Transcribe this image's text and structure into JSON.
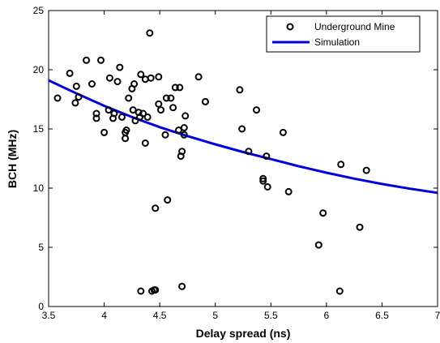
{
  "chart_data": {
    "type": "scatter",
    "title": "",
    "xlabel": "Delay spread (ns)",
    "ylabel": "BCH (MHz)",
    "xlim": [
      3.5,
      7
    ],
    "ylim": [
      0,
      25
    ],
    "xticks": [
      "3.5",
      "4",
      "4.5",
      "5",
      "5.5",
      "6",
      "6.5",
      "7"
    ],
    "yticks": [
      "0",
      "5",
      "10",
      "15",
      "20",
      "25"
    ],
    "grid": false,
    "legend_position": "top-right",
    "series": [
      {
        "name": "Underground Mine",
        "kind": "scatter",
        "marker": "circle",
        "color": "#000000",
        "points": [
          [
            3.58,
            17.6
          ],
          [
            3.69,
            19.7
          ],
          [
            3.74,
            17.2
          ],
          [
            3.75,
            18.6
          ],
          [
            3.77,
            17.7
          ],
          [
            3.84,
            20.8
          ],
          [
            3.89,
            18.8
          ],
          [
            3.93,
            16.3
          ],
          [
            3.93,
            15.9
          ],
          [
            3.97,
            20.8
          ],
          [
            4.0,
            14.7
          ],
          [
            4.04,
            16.6
          ],
          [
            4.05,
            19.3
          ],
          [
            4.08,
            15.9
          ],
          [
            4.09,
            16.3
          ],
          [
            4.12,
            19.0
          ],
          [
            4.14,
            20.2
          ],
          [
            4.16,
            16.0
          ],
          [
            4.19,
            14.2
          ],
          [
            4.19,
            14.7
          ],
          [
            4.2,
            14.9
          ],
          [
            4.22,
            17.6
          ],
          [
            4.25,
            18.4
          ],
          [
            4.26,
            16.6
          ],
          [
            4.27,
            18.8
          ],
          [
            4.28,
            15.7
          ],
          [
            4.31,
            16.4
          ],
          [
            4.32,
            16.0
          ],
          [
            4.33,
            19.6
          ],
          [
            4.35,
            16.3
          ],
          [
            4.37,
            19.2
          ],
          [
            4.37,
            13.8
          ],
          [
            4.39,
            16.0
          ],
          [
            4.41,
            23.1
          ],
          [
            4.42,
            19.3
          ],
          [
            4.33,
            1.3
          ],
          [
            4.43,
            1.3
          ],
          [
            4.45,
            1.4
          ],
          [
            4.46,
            1.4
          ],
          [
            4.46,
            8.3
          ],
          [
            4.49,
            19.4
          ],
          [
            4.49,
            17.1
          ],
          [
            4.51,
            16.6
          ],
          [
            4.55,
            14.5
          ],
          [
            4.56,
            17.6
          ],
          [
            4.57,
            9.0
          ],
          [
            4.6,
            17.6
          ],
          [
            4.62,
            16.8
          ],
          [
            4.64,
            18.5
          ],
          [
            4.67,
            14.9
          ],
          [
            4.68,
            18.5
          ],
          [
            4.69,
            12.7
          ],
          [
            4.7,
            13.1
          ],
          [
            4.7,
            1.7
          ],
          [
            4.72,
            14.5
          ],
          [
            4.72,
            15.1
          ],
          [
            4.73,
            16.1
          ],
          [
            4.85,
            19.4
          ],
          [
            4.91,
            17.3
          ],
          [
            5.22,
            18.3
          ],
          [
            5.24,
            15.0
          ],
          [
            5.3,
            13.1
          ],
          [
            5.37,
            16.6
          ],
          [
            5.43,
            10.8
          ],
          [
            5.43,
            10.6
          ],
          [
            5.46,
            12.7
          ],
          [
            5.47,
            10.1
          ],
          [
            5.61,
            14.7
          ],
          [
            5.66,
            9.7
          ],
          [
            5.93,
            5.2
          ],
          [
            5.97,
            7.9
          ],
          [
            6.12,
            1.3
          ],
          [
            6.13,
            12.0
          ],
          [
            6.3,
            6.7
          ],
          [
            6.36,
            11.5
          ]
        ]
      },
      {
        "name": "Simulation",
        "kind": "line",
        "color": "#0000dd",
        "points": [
          [
            3.5,
            19.1
          ],
          [
            3.75,
            18.0
          ],
          [
            4.0,
            16.95
          ],
          [
            4.25,
            16.0
          ],
          [
            4.5,
            15.15
          ],
          [
            4.75,
            14.4
          ],
          [
            5.0,
            13.7
          ],
          [
            5.25,
            13.05
          ],
          [
            5.5,
            12.45
          ],
          [
            5.75,
            11.85
          ],
          [
            6.0,
            11.3
          ],
          [
            6.25,
            10.8
          ],
          [
            6.5,
            10.35
          ],
          [
            6.75,
            9.95
          ],
          [
            7.0,
            9.6
          ]
        ]
      }
    ]
  }
}
